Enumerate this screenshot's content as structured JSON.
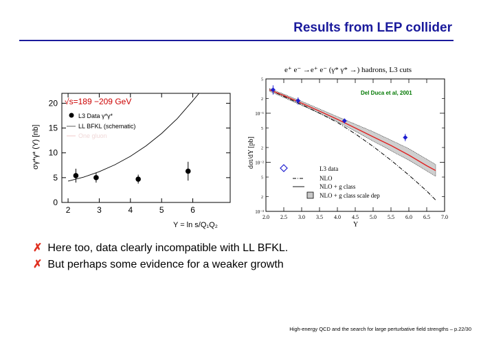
{
  "slide": {
    "title": "Results from LEP collider",
    "bullets": [
      "Here too, data clearly incompatible with LL BFKL.",
      "But perhaps some evidence for a weaker growth"
    ],
    "bullet_marker": "✗",
    "footer": "High-energy QCD and the search for large perturbative field strengths – p.22/30",
    "colors": {
      "title": "#1a1a9c",
      "marker": "#e03020",
      "left_annotation": "#cc0000",
      "right_annotation": "#007700",
      "data_right": "#1f1fd0",
      "nlo_band_line": "#e02020"
    }
  },
  "chart_data": [
    {
      "type": "scatter",
      "annotation": "√s=189 −209 GeV",
      "xlabel": "Y = ln s/Q₁Q₂",
      "ylabel": "σγ*γ* (Y) [nb]",
      "xlim": [
        1.8,
        7.2
      ],
      "ylim": [
        0,
        22
      ],
      "xticks": [
        "2",
        "3",
        "4",
        "5",
        "6"
      ],
      "yticks": [
        "0",
        "5",
        "10",
        "15",
        "20"
      ],
      "legend": [
        "L3 Data γ*γ*",
        "LL BFKL (schematic)",
        "One gluon"
      ],
      "series": [
        {
          "name": "L3 Data γ*γ*",
          "x": [
            2.25,
            2.9,
            4.25,
            5.85
          ],
          "y": [
            5.4,
            5.0,
            4.7,
            6.3
          ],
          "err": [
            1.4,
            1.0,
            0.9,
            1.9
          ]
        },
        {
          "name": "LL BFKL (schematic)",
          "x": [
            2.0,
            2.5,
            3.0,
            3.5,
            4.0,
            4.5,
            5.0,
            5.5,
            6.0,
            6.2
          ],
          "y": [
            4.3,
            5.1,
            6.2,
            7.6,
            9.3,
            11.4,
            13.9,
            16.9,
            20.5,
            22.5
          ]
        }
      ]
    },
    {
      "type": "line",
      "header": "e⁺ e⁻ →e⁺ e⁻ (γ* γ* →) hadrons, L3 cuts",
      "annotation": "Del Duca et al, 2001",
      "xlabel": "Y",
      "ylabel": "dσt/dY [pb]",
      "xlim": [
        2.0,
        7.0
      ],
      "ylim": [
        0.001,
        0.5
      ],
      "xscale": "linear",
      "yscale": "log",
      "xticks": [
        "2.0",
        "2.5",
        "3.0",
        "3.5",
        "4.0",
        "4.5",
        "5.0",
        "5.5",
        "6.0",
        "6.5",
        "7.0"
      ],
      "y_decade_labels": [
        "10⁻¹",
        "10⁻²",
        "10⁻³"
      ],
      "y_minor_labels": [
        "5",
        "2"
      ],
      "legend": [
        "L3 data",
        "NLO",
        "NLO + g class",
        "NLO + g class scale dep"
      ],
      "series": [
        {
          "name": "L3 data",
          "x": [
            2.2,
            2.9,
            4.2,
            5.9
          ],
          "y": [
            0.3,
            0.18,
            0.07,
            0.032
          ],
          "err_low": [
            0.24,
            0.15,
            0.062,
            0.027
          ],
          "err_high": [
            0.37,
            0.21,
            0.078,
            0.038
          ]
        },
        {
          "name": "NLO",
          "x": [
            2.1,
            2.5,
            3.0,
            3.5,
            4.0,
            4.5,
            5.0,
            5.5,
            6.0,
            6.5,
            6.75
          ],
          "y": [
            0.3,
            0.22,
            0.15,
            0.1,
            0.065,
            0.038,
            0.021,
            0.011,
            0.0055,
            0.0026,
            0.0017
          ]
        },
        {
          "name": "NLO + g class",
          "x": [
            2.1,
            2.5,
            3.0,
            3.5,
            4.0,
            4.5,
            5.0,
            5.5,
            6.0,
            6.5,
            6.75
          ],
          "y": [
            0.3,
            0.23,
            0.16,
            0.11,
            0.075,
            0.05,
            0.033,
            0.022,
            0.014,
            0.0085,
            0.0068
          ]
        },
        {
          "name": "NLO + g class scale dep",
          "x": [
            2.1,
            3.0,
            4.0,
            5.0,
            6.0,
            6.75
          ],
          "y_low": [
            0.28,
            0.145,
            0.068,
            0.027,
            0.011,
            0.0052
          ],
          "y_high": [
            0.32,
            0.175,
            0.085,
            0.042,
            0.019,
            0.009
          ]
        }
      ]
    }
  ]
}
